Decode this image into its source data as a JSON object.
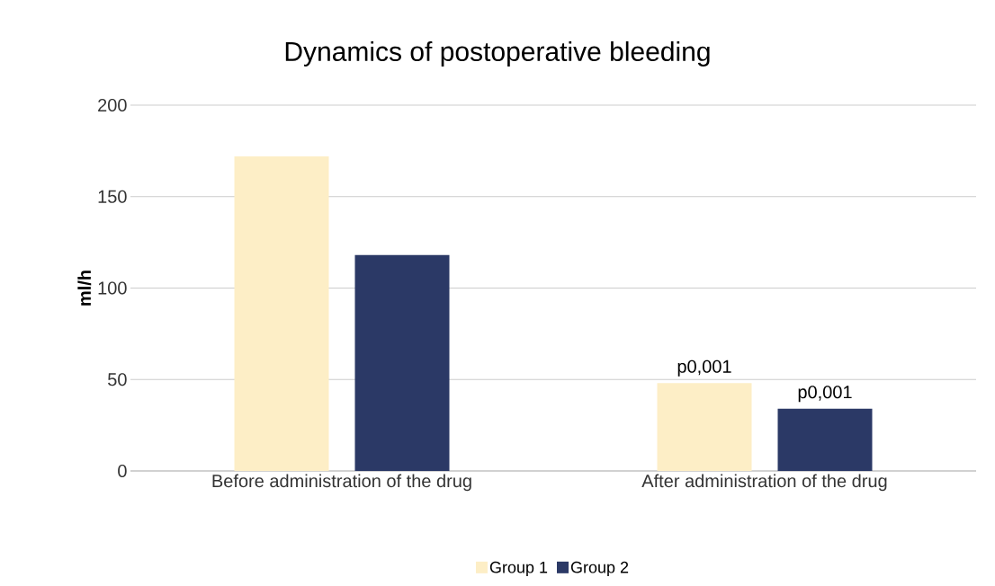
{
  "chart_data": {
    "type": "bar",
    "title": "Dynamics of postoperative bleeding",
    "ylabel": "ml/h",
    "categories": [
      "Before administration of the drug",
      "After administration of the drug"
    ],
    "series": [
      {
        "name": "Group 1",
        "color": "#fdeec6",
        "values": [
          172,
          48
        ],
        "value_labels": [
          null,
          "p0,001"
        ]
      },
      {
        "name": "Group 2",
        "color": "#2b3966",
        "values": [
          118,
          34
        ],
        "value_labels": [
          null,
          "p0,001"
        ]
      }
    ],
    "ylim": [
      0,
      200
    ],
    "yticks": [
      0,
      50,
      100,
      150,
      200
    ],
    "grid": "y",
    "legend": "bottom"
  }
}
